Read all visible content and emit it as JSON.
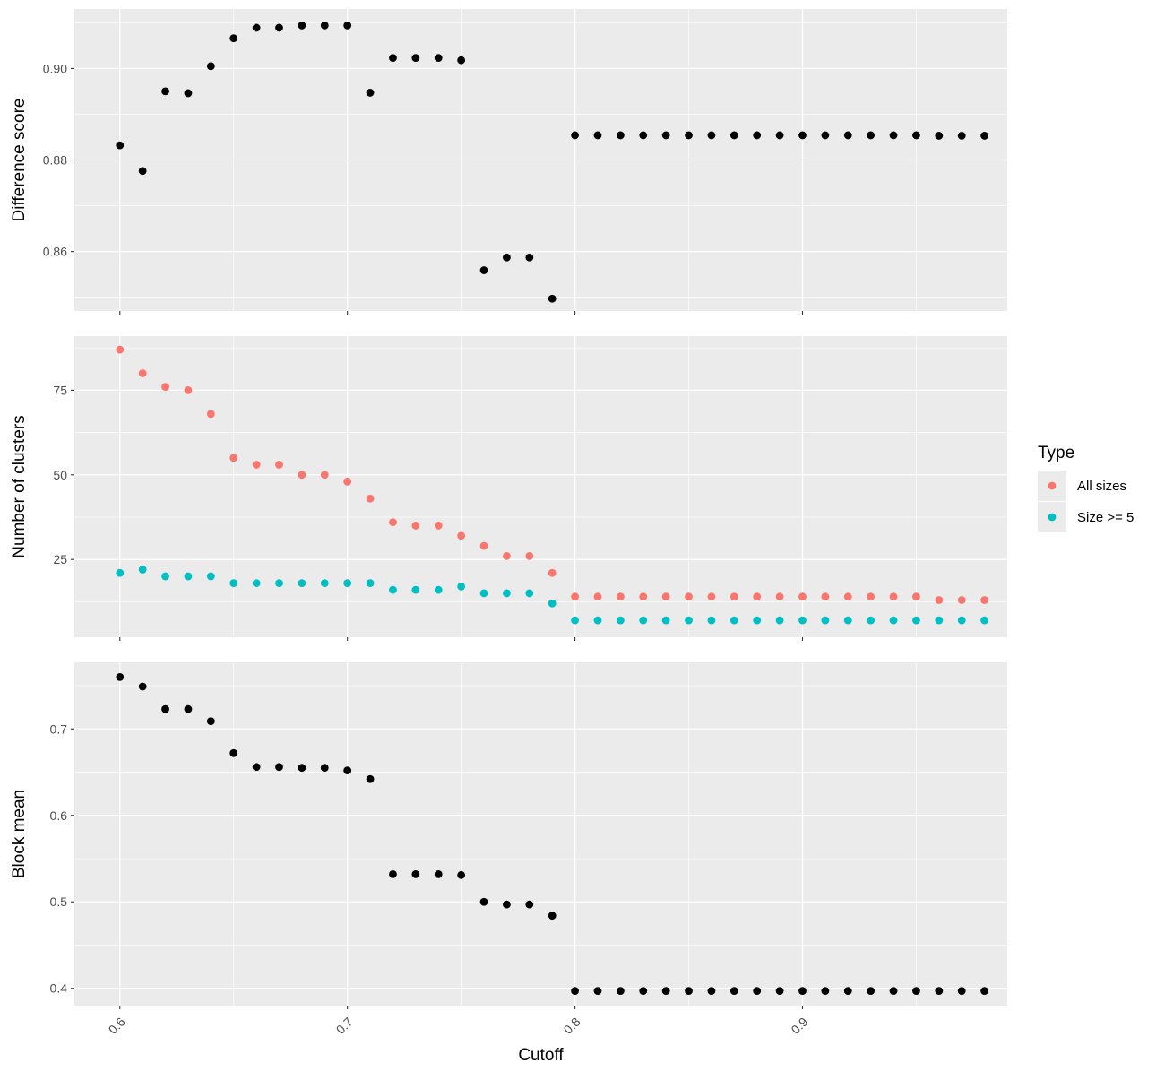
{
  "colors": {
    "panel_bg": "#ebebeb",
    "grid_major": "#ffffff",
    "black_points": "#000000",
    "all_sizes": "#f8766d",
    "size_ge_5": "#00bfc4"
  },
  "chart_data": [
    {
      "type": "scatter",
      "panel": "top",
      "ylabel": "Difference score",
      "xlim": [
        0.58,
        0.99
      ],
      "ylim": [
        0.847,
        0.913
      ],
      "x_ticks": [
        0.6,
        0.7,
        0.8,
        0.9
      ],
      "y_ticks": [
        0.86,
        0.88,
        0.9
      ],
      "y_tick_labels": [
        "0.86",
        "0.88",
        "0.90"
      ],
      "grid": true,
      "series": [
        {
          "color": "#000000",
          "points": [
            [
              0.6,
              0.8832
            ],
            [
              0.61,
              0.8776
            ],
            [
              0.62,
              0.895
            ],
            [
              0.63,
              0.8946
            ],
            [
              0.64,
              0.9005
            ],
            [
              0.65,
              0.9066
            ],
            [
              0.66,
              0.9089
            ],
            [
              0.67,
              0.9089
            ],
            [
              0.68,
              0.9094
            ],
            [
              0.69,
              0.9094
            ],
            [
              0.7,
              0.9094
            ],
            [
              0.71,
              0.8947
            ],
            [
              0.72,
              0.9023
            ],
            [
              0.73,
              0.9023
            ],
            [
              0.74,
              0.9023
            ],
            [
              0.75,
              0.9018
            ],
            [
              0.76,
              0.8559
            ],
            [
              0.77,
              0.8587
            ],
            [
              0.78,
              0.8587
            ],
            [
              0.79,
              0.8497
            ],
            [
              0.8,
              0.8854
            ],
            [
              0.81,
              0.8854
            ],
            [
              0.82,
              0.8854
            ],
            [
              0.83,
              0.8854
            ],
            [
              0.84,
              0.8854
            ],
            [
              0.85,
              0.8854
            ],
            [
              0.86,
              0.8854
            ],
            [
              0.87,
              0.8854
            ],
            [
              0.88,
              0.8854
            ],
            [
              0.89,
              0.8854
            ],
            [
              0.9,
              0.8854
            ],
            [
              0.91,
              0.8854
            ],
            [
              0.92,
              0.8854
            ],
            [
              0.93,
              0.8854
            ],
            [
              0.94,
              0.8854
            ],
            [
              0.95,
              0.8854
            ],
            [
              0.96,
              0.8853
            ],
            [
              0.97,
              0.8853
            ],
            [
              0.98,
              0.8853
            ]
          ]
        }
      ]
    },
    {
      "type": "scatter",
      "panel": "middle",
      "ylabel": "Number of clusters",
      "xlim": [
        0.58,
        0.99
      ],
      "ylim": [
        2,
        91
      ],
      "x_ticks": [
        0.6,
        0.7,
        0.8,
        0.9
      ],
      "y_ticks": [
        25,
        50,
        75
      ],
      "y_tick_labels": [
        "25",
        "50",
        "75"
      ],
      "grid": true,
      "legend": {
        "title": "Type",
        "position": "right",
        "entries": [
          "All sizes",
          "Size >= 5"
        ]
      },
      "series": [
        {
          "name": "All sizes",
          "color": "#f8766d",
          "points": [
            [
              0.6,
              87
            ],
            [
              0.61,
              80
            ],
            [
              0.62,
              76
            ],
            [
              0.63,
              75
            ],
            [
              0.64,
              68
            ],
            [
              0.65,
              55
            ],
            [
              0.66,
              53
            ],
            [
              0.67,
              53
            ],
            [
              0.68,
              50
            ],
            [
              0.69,
              50
            ],
            [
              0.7,
              48
            ],
            [
              0.71,
              43
            ],
            [
              0.72,
              36
            ],
            [
              0.73,
              35
            ],
            [
              0.74,
              35
            ],
            [
              0.75,
              32
            ],
            [
              0.76,
              29
            ],
            [
              0.77,
              26
            ],
            [
              0.78,
              26
            ],
            [
              0.79,
              21
            ],
            [
              0.8,
              14
            ],
            [
              0.81,
              14
            ],
            [
              0.82,
              14
            ],
            [
              0.83,
              14
            ],
            [
              0.84,
              14
            ],
            [
              0.85,
              14
            ],
            [
              0.86,
              14
            ],
            [
              0.87,
              14
            ],
            [
              0.88,
              14
            ],
            [
              0.89,
              14
            ],
            [
              0.9,
              14
            ],
            [
              0.91,
              14
            ],
            [
              0.92,
              14
            ],
            [
              0.93,
              14
            ],
            [
              0.94,
              14
            ],
            [
              0.95,
              14
            ],
            [
              0.96,
              13
            ],
            [
              0.97,
              13
            ],
            [
              0.98,
              13
            ]
          ]
        },
        {
          "name": "Size >= 5",
          "color": "#00bfc4",
          "points": [
            [
              0.6,
              21
            ],
            [
              0.61,
              22
            ],
            [
              0.62,
              20
            ],
            [
              0.63,
              20
            ],
            [
              0.64,
              20
            ],
            [
              0.65,
              18
            ],
            [
              0.66,
              18
            ],
            [
              0.67,
              18
            ],
            [
              0.68,
              18
            ],
            [
              0.69,
              18
            ],
            [
              0.7,
              18
            ],
            [
              0.71,
              18
            ],
            [
              0.72,
              16
            ],
            [
              0.73,
              16
            ],
            [
              0.74,
              16
            ],
            [
              0.75,
              17
            ],
            [
              0.76,
              15
            ],
            [
              0.77,
              15
            ],
            [
              0.78,
              15
            ],
            [
              0.79,
              12
            ],
            [
              0.8,
              7
            ],
            [
              0.81,
              7
            ],
            [
              0.82,
              7
            ],
            [
              0.83,
              7
            ],
            [
              0.84,
              7
            ],
            [
              0.85,
              7
            ],
            [
              0.86,
              7
            ],
            [
              0.87,
              7
            ],
            [
              0.88,
              7
            ],
            [
              0.89,
              7
            ],
            [
              0.9,
              7
            ],
            [
              0.91,
              7
            ],
            [
              0.92,
              7
            ],
            [
              0.93,
              7
            ],
            [
              0.94,
              7
            ],
            [
              0.95,
              7
            ],
            [
              0.96,
              7
            ],
            [
              0.97,
              7
            ],
            [
              0.98,
              7
            ]
          ]
        }
      ]
    },
    {
      "type": "scatter",
      "panel": "bottom",
      "ylabel": "Block mean",
      "xlabel": "Cutoff",
      "xlim": [
        0.58,
        0.99
      ],
      "ylim": [
        0.38,
        0.777
      ],
      "x_ticks": [
        0.6,
        0.7,
        0.8,
        0.9
      ],
      "x_tick_labels": [
        "0.6",
        "0.7",
        "0.8",
        "0.9"
      ],
      "y_ticks": [
        0.4,
        0.5,
        0.6,
        0.7
      ],
      "y_tick_labels": [
        "0.4",
        "0.5",
        "0.6",
        "0.7"
      ],
      "grid": true,
      "series": [
        {
          "color": "#000000",
          "points": [
            [
              0.6,
              0.76
            ],
            [
              0.61,
              0.749
            ],
            [
              0.62,
              0.723
            ],
            [
              0.63,
              0.723
            ],
            [
              0.64,
              0.709
            ],
            [
              0.65,
              0.672
            ],
            [
              0.66,
              0.656
            ],
            [
              0.67,
              0.656
            ],
            [
              0.68,
              0.655
            ],
            [
              0.69,
              0.655
            ],
            [
              0.7,
              0.652
            ],
            [
              0.71,
              0.642
            ],
            [
              0.72,
              0.532
            ],
            [
              0.73,
              0.532
            ],
            [
              0.74,
              0.532
            ],
            [
              0.75,
              0.531
            ],
            [
              0.76,
              0.5
            ],
            [
              0.77,
              0.497
            ],
            [
              0.78,
              0.497
            ],
            [
              0.79,
              0.484
            ],
            [
              0.8,
              0.397
            ],
            [
              0.81,
              0.397
            ],
            [
              0.82,
              0.397
            ],
            [
              0.83,
              0.397
            ],
            [
              0.84,
              0.397
            ],
            [
              0.85,
              0.397
            ],
            [
              0.86,
              0.397
            ],
            [
              0.87,
              0.397
            ],
            [
              0.88,
              0.397
            ],
            [
              0.89,
              0.397
            ],
            [
              0.9,
              0.397
            ],
            [
              0.91,
              0.397
            ],
            [
              0.92,
              0.397
            ],
            [
              0.93,
              0.397
            ],
            [
              0.94,
              0.397
            ],
            [
              0.95,
              0.397
            ],
            [
              0.96,
              0.397
            ],
            [
              0.97,
              0.397
            ],
            [
              0.98,
              0.397
            ]
          ]
        }
      ]
    }
  ]
}
